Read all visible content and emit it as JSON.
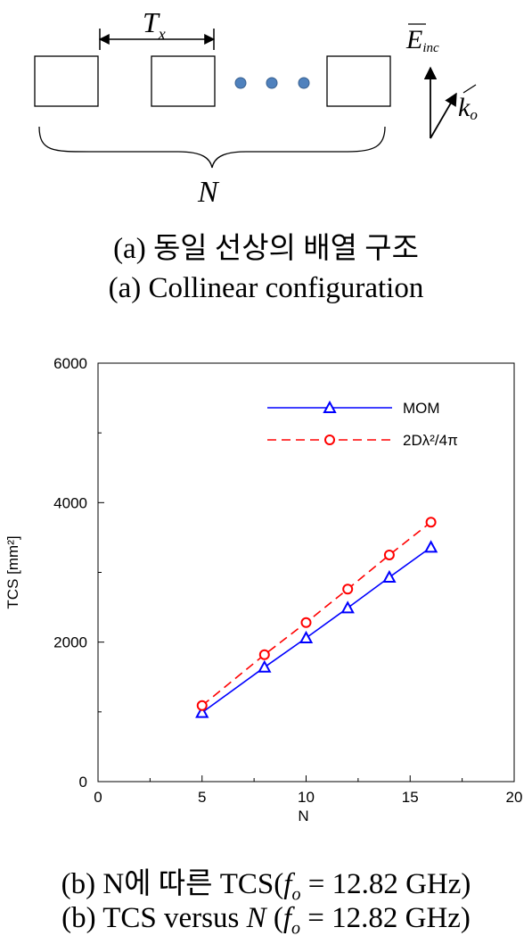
{
  "diagram": {
    "period_label_main": "T",
    "period_label_sub": "x",
    "count_label": "N",
    "field_label_main": "E",
    "field_label_sub": "inc",
    "wave_label_main": "k",
    "wave_label_sub": "o"
  },
  "captions": {
    "a_korean": "(a) 동일 선상의 배열 구조",
    "a_english": "(a) Collinear configuration",
    "b_korean_prefix": "(b) N에 따른 TCS(",
    "b_english_prefix": "(b) TCS versus ",
    "b_english_N": "N",
    "b_english_open": " (",
    "b_f": "f",
    "b_f_sub": "o",
    "b_value": " = 12.82 GHz)"
  },
  "chart_data": {
    "type": "line",
    "xlabel": "N",
    "ylabel": "TCS [mm²]",
    "xlim": [
      0,
      20
    ],
    "ylim": [
      0,
      6000
    ],
    "x_ticks": [
      0,
      5,
      10,
      15,
      20
    ],
    "y_ticks": [
      0,
      2000,
      4000,
      6000
    ],
    "x_minor": 2.5,
    "y_minor": 1000,
    "grid": false,
    "legend_position": "top-right",
    "series": [
      {
        "name": "MOM",
        "color": "#0000ff",
        "marker": "triangle",
        "line": "solid",
        "x": [
          5,
          8,
          10,
          12,
          14,
          16
        ],
        "y": [
          990,
          1640,
          2060,
          2490,
          2930,
          3360
        ]
      },
      {
        "name": "2Dλ²/4π",
        "color": "#ff0000",
        "marker": "circle",
        "line": "dashed",
        "x": [
          5,
          8,
          10,
          12,
          14,
          16
        ],
        "y": [
          1090,
          1820,
          2280,
          2760,
          3250,
          3720
        ]
      }
    ]
  }
}
